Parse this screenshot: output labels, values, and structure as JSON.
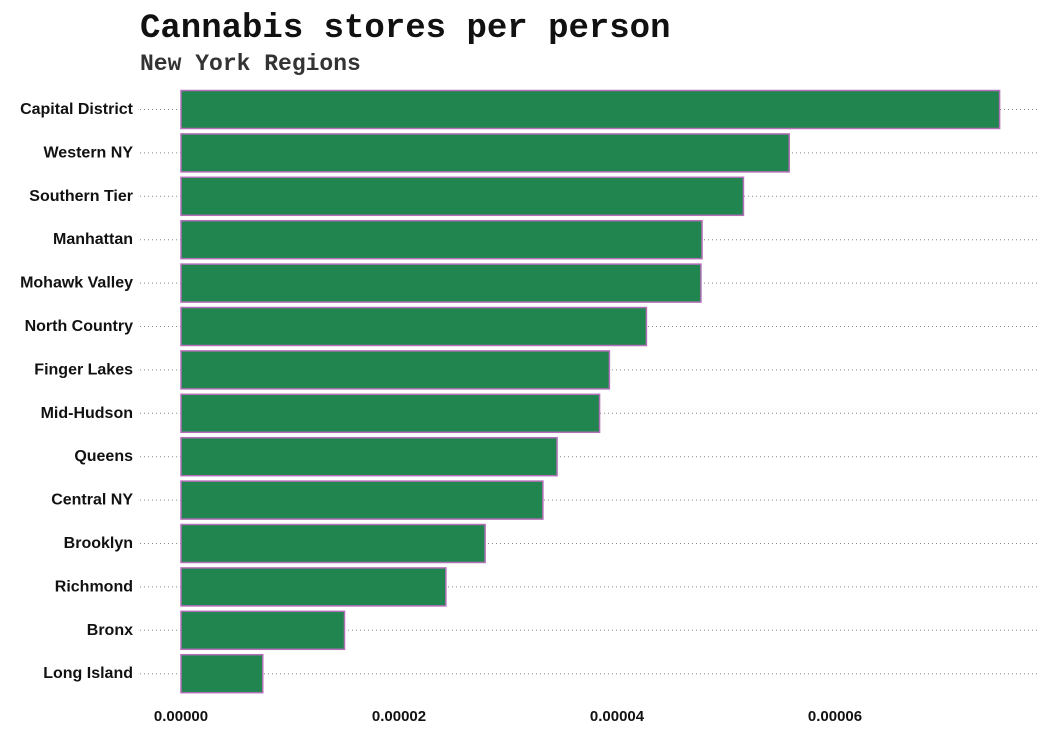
{
  "chart_data": {
    "type": "bar",
    "orientation": "horizontal",
    "title": "Cannabis stores per person",
    "subtitle": "New York Regions",
    "xlabel": "",
    "ylabel": "",
    "categories": [
      "Capital District",
      "Western NY",
      "Southern Tier",
      "Manhattan",
      "Mohawk Valley",
      "North Country",
      "Finger Lakes",
      "Mid-Hudson",
      "Queens",
      "Central NY",
      "Brooklyn",
      "Richmond",
      "Bronx",
      "Long Island"
    ],
    "values": [
      7.51e-05,
      5.58e-05,
      5.16e-05,
      4.78e-05,
      4.77e-05,
      4.27e-05,
      3.93e-05,
      3.84e-05,
      3.45e-05,
      3.32e-05,
      2.79e-05,
      2.43e-05,
      1.5e-05,
      7.5e-06
    ],
    "xlim": [
      0,
      7.86e-05
    ],
    "xticks": [
      0,
      2e-05,
      4e-05,
      6e-05
    ],
    "xtick_labels": [
      "0.00000",
      "0.00002",
      "0.00004",
      "0.00006"
    ],
    "grid": "horizontal dotted",
    "legend": "none",
    "colors": {
      "bar_fill": "#20854E",
      "bar_outline": "#B36FB8",
      "grid": "#888888"
    }
  }
}
